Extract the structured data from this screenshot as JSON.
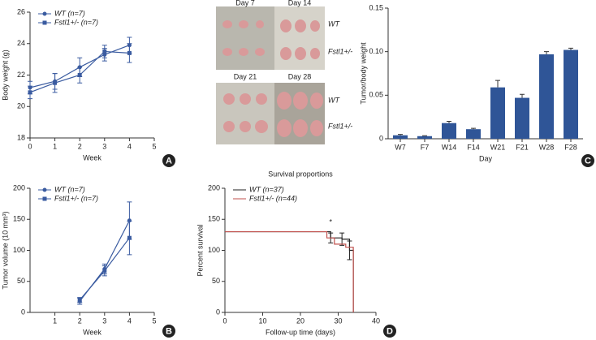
{
  "chart_data": [
    {
      "type": "line",
      "panel_label": "A",
      "xlabel": "Week",
      "ylabel": "Body weight (g)",
      "x": [
        0,
        1,
        2,
        3,
        4
      ],
      "xlim": [
        0,
        5
      ],
      "xticks": [
        0,
        1,
        2,
        3,
        4,
        5
      ],
      "ylim": [
        18,
        26
      ],
      "yticks": [
        18,
        20,
        22,
        24,
        26
      ],
      "legend": "upper left",
      "series": [
        {
          "name": "WT (n=7)",
          "color": "#3a5ba0",
          "marker": "circle",
          "values": [
            21.2,
            21.6,
            22.5,
            23.3,
            23.9
          ],
          "errors": [
            0.4,
            0.5,
            0.6,
            0.4,
            0.5
          ]
        },
        {
          "name": "Fstl1+/- (n=7)",
          "color": "#3a5ba0",
          "marker": "square",
          "values": [
            20.9,
            21.5,
            22.0,
            23.5,
            23.4
          ],
          "errors": [
            0.4,
            0.6,
            0.5,
            0.4,
            0.6
          ]
        }
      ]
    },
    {
      "type": "line",
      "panel_label": "B",
      "xlabel": "Week",
      "ylabel": "Tumor volume (10 mm³)",
      "x": [
        2,
        3,
        4
      ],
      "xlim": [
        0,
        5
      ],
      "xticks": [
        1,
        2,
        3,
        4,
        5
      ],
      "ylim": [
        0,
        200
      ],
      "yticks": [
        0,
        50,
        100,
        150,
        200
      ],
      "legend": "upper left",
      "series": [
        {
          "name": "WT (n=7)",
          "color": "#3a5ba0",
          "marker": "circle",
          "values": [
            18,
            70,
            148
          ],
          "errors": [
            5,
            8,
            30
          ]
        },
        {
          "name": "Fstl1+/- (n=7)",
          "color": "#3a5ba0",
          "marker": "square",
          "values": [
            20,
            67,
            120
          ],
          "errors": [
            4,
            8,
            27
          ]
        }
      ]
    },
    {
      "type": "bar",
      "panel_label": "C",
      "xlabel": "Day",
      "ylabel": "Tumor/body weight",
      "categories": [
        "W7",
        "F7",
        "W14",
        "F14",
        "W21",
        "F21",
        "W28",
        "F28"
      ],
      "values": [
        0.004,
        0.003,
        0.018,
        0.011,
        0.059,
        0.047,
        0.097,
        0.102
      ],
      "errors": [
        0.001,
        0.0005,
        0.002,
        0.001,
        0.008,
        0.004,
        0.003,
        0.002
      ],
      "color": "#2f5597",
      "ylim": [
        0,
        0.15
      ],
      "yticks": [
        0,
        0.05,
        {
          "value": 0.1,
          "label": "0.10"
        },
        0.15
      ]
    },
    {
      "type": "step",
      "panel_label": "D",
      "title": "Survival proportions",
      "annotation": "*",
      "xlabel": "Follow-up time (days)",
      "ylabel": "Percent survival",
      "xlim": [
        0,
        40
      ],
      "xticks": [
        0,
        10,
        20,
        30,
        40
      ],
      "ylim": [
        0,
        200
      ],
      "yticks": [
        0,
        50,
        100,
        150,
        200
      ],
      "legend": "upper left",
      "series": [
        {
          "name": "WT (n=37)",
          "color": "#222222",
          "x": [
            0,
            28,
            31,
            33,
            34
          ],
          "values": [
            130,
            120,
            118,
            100,
            0
          ],
          "errors": [
            null,
            8,
            10,
            15,
            null
          ]
        },
        {
          "name": "Fstl1+/- (n=44)",
          "color": "#c0504d",
          "x": [
            0,
            27,
            29,
            32,
            34
          ],
          "values": [
            130,
            120,
            110,
            105,
            0
          ],
          "errors": [
            null,
            null,
            null,
            null,
            null
          ]
        }
      ]
    }
  ],
  "photo_panel": {
    "labels": [
      "Day 7",
      "Day 14",
      "WT",
      "Fstl1+/-",
      "Day 21",
      "Day 28",
      "WT",
      "Fstl1+/-"
    ]
  }
}
